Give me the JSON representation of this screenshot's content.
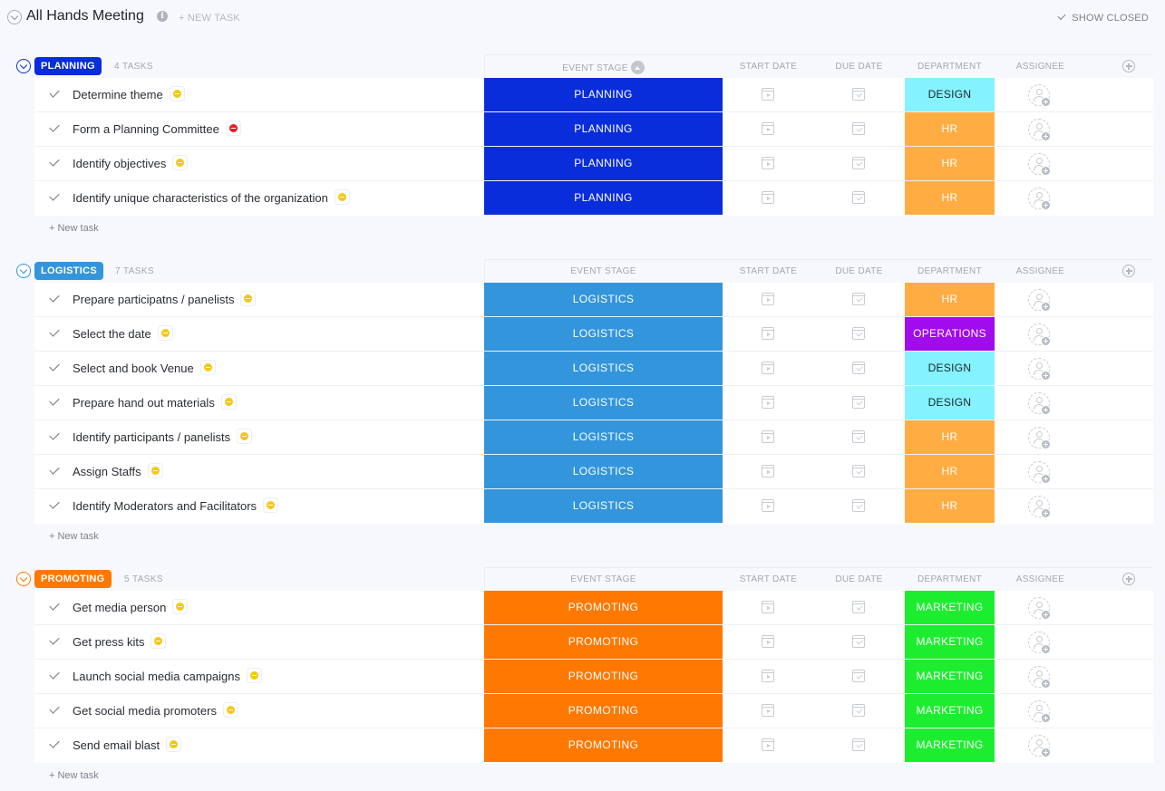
{
  "page": {
    "title": "All Hands Meeting",
    "new_task_label": "+ NEW TASK",
    "show_closed_label": "SHOW CLOSED"
  },
  "columns": {
    "event_stage": "EVENT STAGE",
    "start_date": "START DATE",
    "due_date": "DUE DATE",
    "department": "DEPARTMENT",
    "assignee": "ASSIGNEE"
  },
  "new_task_row_label": "+ New task",
  "colors": {
    "planning": "#0a2ddb",
    "logistics": "#3395dc",
    "promoting": "#ff7800",
    "design": "#85f2ff",
    "hr": "#ffad43",
    "operations": "#a10cec",
    "marketing": "#1cee2f"
  },
  "groups": [
    {
      "name": "PLANNING",
      "count_label": "4 TASKS",
      "color": "#0a2ddb",
      "tasks": [
        {
          "name": "Determine theme",
          "priority": "normal",
          "stage": "PLANNING",
          "department": "DESIGN"
        },
        {
          "name": "Form a Planning Committee",
          "priority": "urgent",
          "stage": "PLANNING",
          "department": "HR"
        },
        {
          "name": "Identify objectives",
          "priority": "normal",
          "stage": "PLANNING",
          "department": "HR"
        },
        {
          "name": "Identify unique characteristics of the organization",
          "priority": "normal",
          "stage": "PLANNING",
          "department": "HR"
        }
      ]
    },
    {
      "name": "LOGISTICS",
      "count_label": "7 TASKS",
      "color": "#3395dc",
      "tasks": [
        {
          "name": "Prepare participatns / panelists",
          "priority": "normal",
          "stage": "LOGISTICS",
          "department": "HR"
        },
        {
          "name": "Select the date",
          "priority": "normal",
          "stage": "LOGISTICS",
          "department": "OPERATIONS"
        },
        {
          "name": "Select and book Venue",
          "priority": "normal",
          "stage": "LOGISTICS",
          "department": "DESIGN"
        },
        {
          "name": "Prepare hand out materials",
          "priority": "normal",
          "stage": "LOGISTICS",
          "department": "DESIGN"
        },
        {
          "name": "Identify participants / panelists",
          "priority": "normal",
          "stage": "LOGISTICS",
          "department": "HR"
        },
        {
          "name": "Assign Staffs",
          "priority": "normal",
          "stage": "LOGISTICS",
          "department": "HR"
        },
        {
          "name": "Identify Moderators and Facilitators",
          "priority": "normal",
          "stage": "LOGISTICS",
          "department": "HR"
        }
      ]
    },
    {
      "name": "PROMOTING",
      "count_label": "5 TASKS",
      "color": "#ff7800",
      "tasks": [
        {
          "name": "Get media person",
          "priority": "normal",
          "stage": "PROMOTING",
          "department": "MARKETING"
        },
        {
          "name": "Get press kits",
          "priority": "normal",
          "stage": "PROMOTING",
          "department": "MARKETING"
        },
        {
          "name": "Launch social media campaigns",
          "priority": "normal",
          "stage": "PROMOTING",
          "department": "MARKETING"
        },
        {
          "name": "Get social media promoters",
          "priority": "normal",
          "stage": "PROMOTING",
          "department": "MARKETING"
        },
        {
          "name": "Send email blast",
          "priority": "normal",
          "stage": "PROMOTING",
          "department": "MARKETING"
        }
      ]
    }
  ]
}
